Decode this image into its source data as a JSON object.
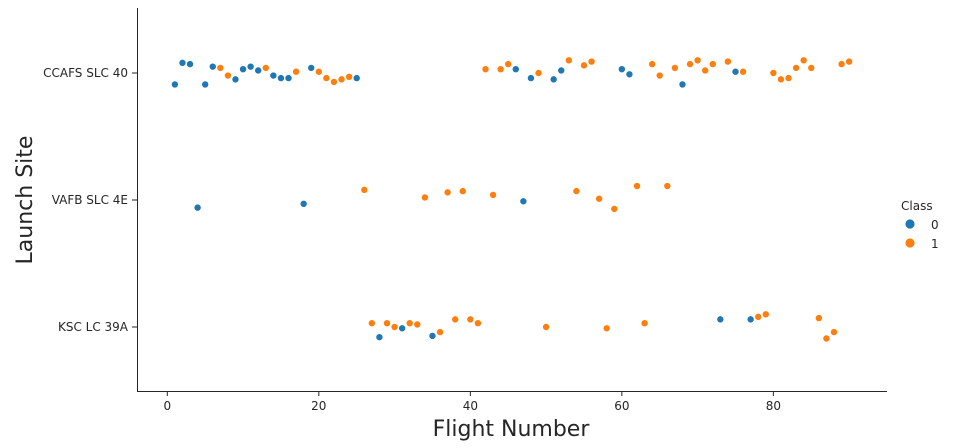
{
  "chart_data": {
    "type": "scatter",
    "title": "",
    "xlabel": "Flight Number",
    "ylabel": "Launch Site",
    "xlim": [
      -4,
      95
    ],
    "x_ticks": [
      0,
      20,
      40,
      60,
      80
    ],
    "categories": [
      "CCAFS SLC 40",
      "VAFB SLC 4E",
      "KSC LC 39A"
    ],
    "grid": false,
    "legend": {
      "title": "Class",
      "placement": "right"
    },
    "series": [
      {
        "name": "0",
        "color": "#1f77b4",
        "points": [
          {
            "x": 1,
            "site": "CCAFS SLC 40",
            "jitter": 0.09
          },
          {
            "x": 2,
            "site": "CCAFS SLC 40",
            "jitter": -0.08
          },
          {
            "x": 3,
            "site": "CCAFS SLC 40",
            "jitter": -0.07
          },
          {
            "x": 5,
            "site": "CCAFS SLC 40",
            "jitter": 0.09
          },
          {
            "x": 6,
            "site": "CCAFS SLC 40",
            "jitter": -0.05
          },
          {
            "x": 9,
            "site": "CCAFS SLC 40",
            "jitter": 0.05
          },
          {
            "x": 10,
            "site": "CCAFS SLC 40",
            "jitter": -0.03
          },
          {
            "x": 11,
            "site": "CCAFS SLC 40",
            "jitter": -0.05
          },
          {
            "x": 12,
            "site": "CCAFS SLC 40",
            "jitter": -0.02
          },
          {
            "x": 14,
            "site": "CCAFS SLC 40",
            "jitter": 0.02
          },
          {
            "x": 15,
            "site": "CCAFS SLC 40",
            "jitter": 0.04
          },
          {
            "x": 16,
            "site": "CCAFS SLC 40",
            "jitter": 0.04
          },
          {
            "x": 19,
            "site": "CCAFS SLC 40",
            "jitter": -0.04
          },
          {
            "x": 25,
            "site": "CCAFS SLC 40",
            "jitter": 0.04
          },
          {
            "x": 46,
            "site": "CCAFS SLC 40",
            "jitter": -0.03
          },
          {
            "x": 48,
            "site": "CCAFS SLC 40",
            "jitter": 0.04
          },
          {
            "x": 51,
            "site": "CCAFS SLC 40",
            "jitter": 0.05
          },
          {
            "x": 52,
            "site": "CCAFS SLC 40",
            "jitter": -0.02
          },
          {
            "x": 60,
            "site": "CCAFS SLC 40",
            "jitter": -0.03
          },
          {
            "x": 61,
            "site": "CCAFS SLC 40",
            "jitter": 0.01
          },
          {
            "x": 68,
            "site": "CCAFS SLC 40",
            "jitter": 0.09
          },
          {
            "x": 75,
            "site": "CCAFS SLC 40",
            "jitter": -0.01
          },
          {
            "x": 4,
            "site": "VAFB SLC 4E",
            "jitter": 0.06
          },
          {
            "x": 18,
            "site": "VAFB SLC 4E",
            "jitter": 0.03
          },
          {
            "x": 47,
            "site": "VAFB SLC 4E",
            "jitter": 0.01
          },
          {
            "x": 28,
            "site": "KSC LC 39A",
            "jitter": 0.08
          },
          {
            "x": 31,
            "site": "KSC LC 39A",
            "jitter": 0.01
          },
          {
            "x": 35,
            "site": "KSC LC 39A",
            "jitter": 0.07
          },
          {
            "x": 73,
            "site": "KSC LC 39A",
            "jitter": -0.06
          },
          {
            "x": 77,
            "site": "KSC LC 39A",
            "jitter": -0.06
          }
        ]
      },
      {
        "name": "1",
        "color": "#ff7f0e",
        "points": [
          {
            "x": 7,
            "site": "CCAFS SLC 40",
            "jitter": -0.04
          },
          {
            "x": 8,
            "site": "CCAFS SLC 40",
            "jitter": 0.02
          },
          {
            "x": 13,
            "site": "CCAFS SLC 40",
            "jitter": -0.04
          },
          {
            "x": 17,
            "site": "CCAFS SLC 40",
            "jitter": -0.01
          },
          {
            "x": 20,
            "site": "CCAFS SLC 40",
            "jitter": -0.01
          },
          {
            "x": 21,
            "site": "CCAFS SLC 40",
            "jitter": 0.04
          },
          {
            "x": 22,
            "site": "CCAFS SLC 40",
            "jitter": 0.07
          },
          {
            "x": 23,
            "site": "CCAFS SLC 40",
            "jitter": 0.05
          },
          {
            "x": 24,
            "site": "CCAFS SLC 40",
            "jitter": 0.03
          },
          {
            "x": 42,
            "site": "CCAFS SLC 40",
            "jitter": -0.03
          },
          {
            "x": 44,
            "site": "CCAFS SLC 40",
            "jitter": -0.03
          },
          {
            "x": 45,
            "site": "CCAFS SLC 40",
            "jitter": -0.07
          },
          {
            "x": 49,
            "site": "CCAFS SLC 40",
            "jitter": 0.0
          },
          {
            "x": 53,
            "site": "CCAFS SLC 40",
            "jitter": -0.1
          },
          {
            "x": 55,
            "site": "CCAFS SLC 40",
            "jitter": -0.06
          },
          {
            "x": 56,
            "site": "CCAFS SLC 40",
            "jitter": -0.09
          },
          {
            "x": 64,
            "site": "CCAFS SLC 40",
            "jitter": -0.07
          },
          {
            "x": 65,
            "site": "CCAFS SLC 40",
            "jitter": 0.02
          },
          {
            "x": 67,
            "site": "CCAFS SLC 40",
            "jitter": -0.04
          },
          {
            "x": 69,
            "site": "CCAFS SLC 40",
            "jitter": -0.07
          },
          {
            "x": 70,
            "site": "CCAFS SLC 40",
            "jitter": -0.1
          },
          {
            "x": 71,
            "site": "CCAFS SLC 40",
            "jitter": -0.02
          },
          {
            "x": 72,
            "site": "CCAFS SLC 40",
            "jitter": -0.07
          },
          {
            "x": 74,
            "site": "CCAFS SLC 40",
            "jitter": -0.09
          },
          {
            "x": 76,
            "site": "CCAFS SLC 40",
            "jitter": -0.01
          },
          {
            "x": 80,
            "site": "CCAFS SLC 40",
            "jitter": 0.0
          },
          {
            "x": 81,
            "site": "CCAFS SLC 40",
            "jitter": 0.05
          },
          {
            "x": 82,
            "site": "CCAFS SLC 40",
            "jitter": 0.04
          },
          {
            "x": 83,
            "site": "CCAFS SLC 40",
            "jitter": -0.04
          },
          {
            "x": 84,
            "site": "CCAFS SLC 40",
            "jitter": -0.1
          },
          {
            "x": 85,
            "site": "CCAFS SLC 40",
            "jitter": -0.04
          },
          {
            "x": 89,
            "site": "CCAFS SLC 40",
            "jitter": -0.07
          },
          {
            "x": 90,
            "site": "CCAFS SLC 40",
            "jitter": -0.09
          },
          {
            "x": 26,
            "site": "VAFB SLC 4E",
            "jitter": -0.08
          },
          {
            "x": 34,
            "site": "VAFB SLC 4E",
            "jitter": -0.02
          },
          {
            "x": 37,
            "site": "VAFB SLC 4E",
            "jitter": -0.06
          },
          {
            "x": 39,
            "site": "VAFB SLC 4E",
            "jitter": -0.07
          },
          {
            "x": 43,
            "site": "VAFB SLC 4E",
            "jitter": -0.04
          },
          {
            "x": 54,
            "site": "VAFB SLC 4E",
            "jitter": -0.07
          },
          {
            "x": 57,
            "site": "VAFB SLC 4E",
            "jitter": -0.01
          },
          {
            "x": 59,
            "site": "VAFB SLC 4E",
            "jitter": 0.07
          },
          {
            "x": 62,
            "site": "VAFB SLC 4E",
            "jitter": -0.11
          },
          {
            "x": 66,
            "site": "VAFB SLC 4E",
            "jitter": -0.11
          },
          {
            "x": 27,
            "site": "KSC LC 39A",
            "jitter": -0.03
          },
          {
            "x": 29,
            "site": "KSC LC 39A",
            "jitter": -0.03
          },
          {
            "x": 30,
            "site": "KSC LC 39A",
            "jitter": 0.0
          },
          {
            "x": 32,
            "site": "KSC LC 39A",
            "jitter": -0.03
          },
          {
            "x": 33,
            "site": "KSC LC 39A",
            "jitter": -0.02
          },
          {
            "x": 36,
            "site": "KSC LC 39A",
            "jitter": 0.04
          },
          {
            "x": 38,
            "site": "KSC LC 39A",
            "jitter": -0.06
          },
          {
            "x": 40,
            "site": "KSC LC 39A",
            "jitter": -0.06
          },
          {
            "x": 41,
            "site": "KSC LC 39A",
            "jitter": -0.03
          },
          {
            "x": 50,
            "site": "KSC LC 39A",
            "jitter": 0.0
          },
          {
            "x": 58,
            "site": "KSC LC 39A",
            "jitter": 0.01
          },
          {
            "x": 63,
            "site": "KSC LC 39A",
            "jitter": -0.03
          },
          {
            "x": 78,
            "site": "KSC LC 39A",
            "jitter": -0.08
          },
          {
            "x": 79,
            "site": "KSC LC 39A",
            "jitter": -0.1
          },
          {
            "x": 86,
            "site": "KSC LC 39A",
            "jitter": -0.07
          },
          {
            "x": 87,
            "site": "KSC LC 39A",
            "jitter": 0.09
          },
          {
            "x": 88,
            "site": "KSC LC 39A",
            "jitter": 0.04
          }
        ]
      }
    ]
  }
}
